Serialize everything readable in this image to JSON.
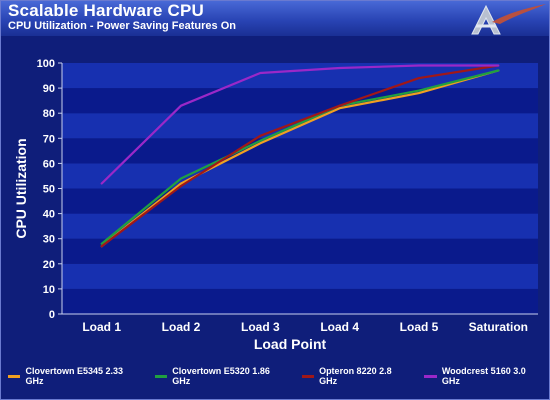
{
  "header": {
    "title": "Scalable Hardware CPU",
    "subtitle": "CPU Utilization - Power Saving Features On"
  },
  "colors": {
    "background": "#0f1e7a",
    "plot_band_dark": "#0a1a8c",
    "plot_band_light": "#1730b0",
    "axis_text": "#ffffff"
  },
  "chart_data": {
    "type": "line",
    "title": "Scalable Hardware CPU",
    "subtitle": "CPU Utilization - Power Saving Features On",
    "xlabel": "Load Point",
    "ylabel": "CPU Utilization",
    "categories": [
      "Load 1",
      "Load 2",
      "Load 3",
      "Load 4",
      "Load 5",
      "Saturation"
    ],
    "ylim": [
      0,
      100
    ],
    "yticks": [
      0,
      10,
      20,
      30,
      40,
      50,
      60,
      70,
      80,
      90,
      100
    ],
    "grid": true,
    "legend_position": "bottom",
    "series": [
      {
        "name": "Clovertown E5345 2.33 GHz",
        "color": "#f0a020",
        "values": [
          27,
          52,
          68,
          82,
          88,
          97
        ]
      },
      {
        "name": "Clovertown E5320 1.86 GHz",
        "color": "#20a040",
        "values": [
          28,
          54,
          69,
          83,
          89,
          97
        ]
      },
      {
        "name": "Opteron 8220 2.8 GHz",
        "color": "#a01818",
        "values": [
          27,
          51,
          71,
          83,
          94,
          99
        ]
      },
      {
        "name": "Woodcrest 5160 3.0 GHz",
        "color": "#9a28c8",
        "values": [
          52,
          83,
          96,
          98,
          99,
          99
        ]
      }
    ]
  }
}
